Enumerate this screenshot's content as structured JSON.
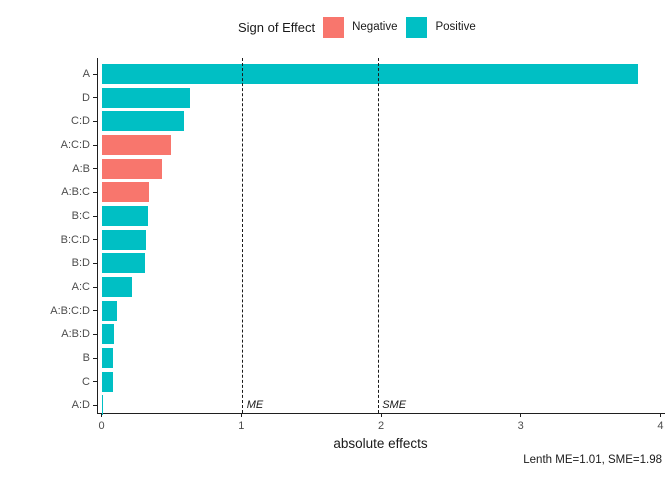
{
  "legend": {
    "title": "Sign of Effect",
    "items": [
      {
        "label": "Negative",
        "color": "#F8766D"
      },
      {
        "label": "Positive",
        "color": "#00BFC4"
      }
    ]
  },
  "chart_data": {
    "type": "bar",
    "orientation": "horizontal",
    "title": "",
    "xlabel": "absolute effects",
    "ylabel": "",
    "xlim": [
      0,
      4
    ],
    "x_ticks": [
      0,
      1,
      2,
      3,
      4
    ],
    "grid": false,
    "legend_position": "top",
    "categories": [
      "A",
      "D",
      "C:D",
      "A:C:D",
      "A:B",
      "A:B:C",
      "B:C",
      "B:C:D",
      "B:D",
      "A:C",
      "A:B:C:D",
      "A:B:D",
      "B",
      "C",
      "A:D"
    ],
    "values": [
      3.84,
      0.63,
      0.59,
      0.5,
      0.43,
      0.34,
      0.33,
      0.32,
      0.31,
      0.22,
      0.11,
      0.09,
      0.08,
      0.08,
      0.01
    ],
    "signs": [
      "Positive",
      "Positive",
      "Positive",
      "Negative",
      "Negative",
      "Negative",
      "Positive",
      "Positive",
      "Positive",
      "Positive",
      "Positive",
      "Positive",
      "Positive",
      "Positive",
      "Positive"
    ],
    "colors": {
      "Negative": "#F8766D",
      "Positive": "#00BFC4"
    },
    "reference_lines": [
      {
        "label": "ME",
        "value": 1.01
      },
      {
        "label": "SME",
        "value": 1.98
      }
    ],
    "caption": "Lenth ME=1.01, SME=1.98"
  }
}
